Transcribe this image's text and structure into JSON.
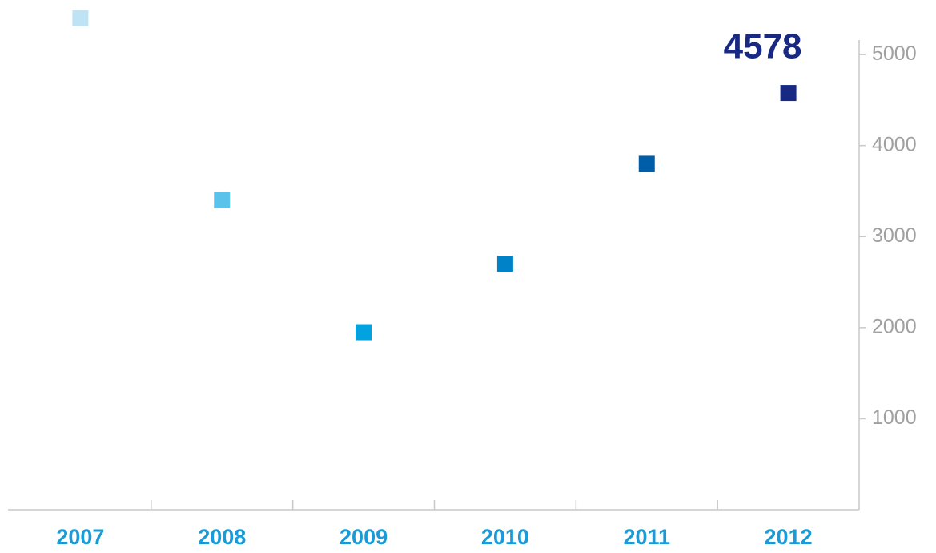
{
  "chart_data": {
    "type": "scatter",
    "categories": [
      "2007",
      "2008",
      "2009",
      "2010",
      "2011",
      "2012"
    ],
    "values": [
      5400,
      3400,
      1950,
      2700,
      3800,
      4578
    ],
    "colors": [
      "#bde3f5",
      "#5bc2ec",
      "#00a3e0",
      "#0082c8",
      "#005ea8",
      "#172983"
    ],
    "ylim": [
      0,
      5600
    ],
    "yticks": [
      1000,
      2000,
      3000,
      4000,
      5000
    ]
  }
}
